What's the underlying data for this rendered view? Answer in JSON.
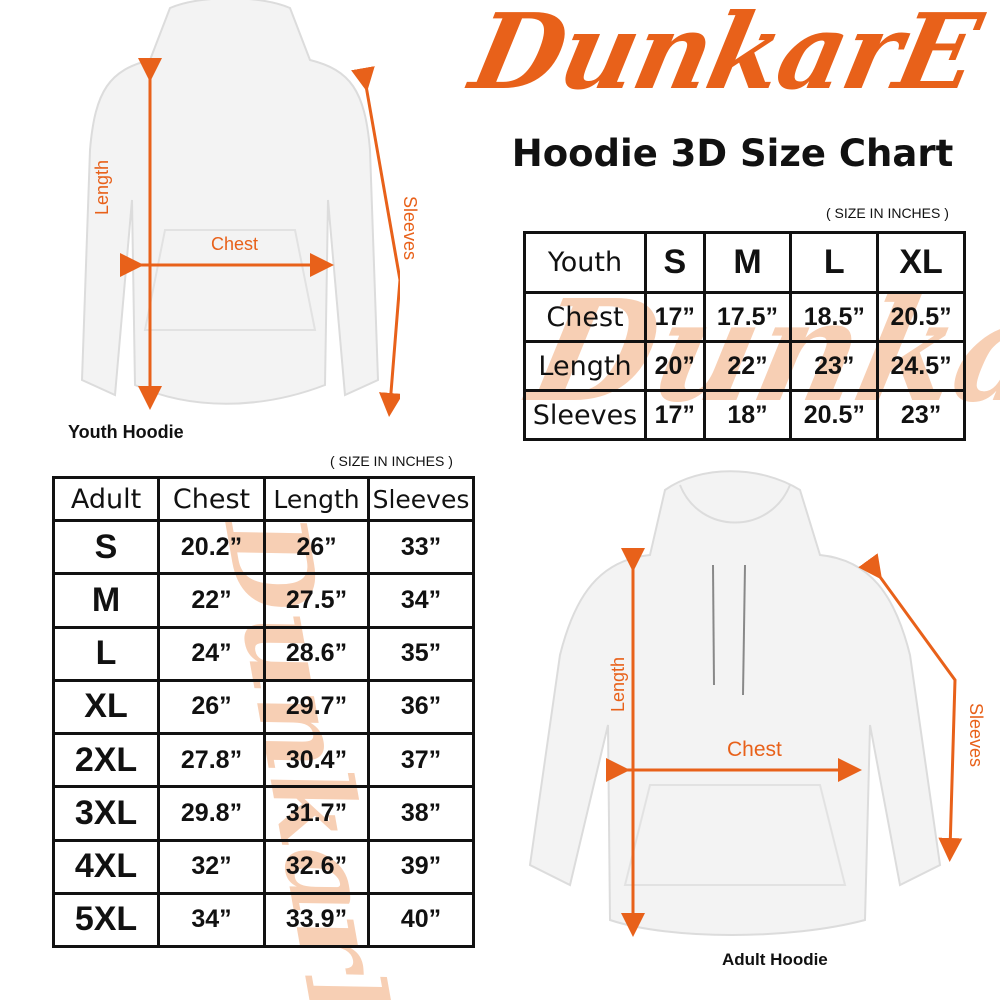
{
  "brand": {
    "logo_text": "DunkarE",
    "color": "#e8611a",
    "watermark_color": "#f7cfb4"
  },
  "title": "Hoodie 3D Size Chart",
  "youth": {
    "note": "( SIZE IN INCHES )",
    "caption": "Youth Hoodie",
    "diagram_labels": {
      "length": "Length",
      "chest": "Chest",
      "sleeves": "Sleeves"
    },
    "table": {
      "header": [
        "Youth",
        "S",
        "M",
        "L",
        "XL"
      ],
      "rows": [
        {
          "label": "Chest",
          "values": [
            "17”",
            "17.5”",
            "18.5”",
            "20.5”"
          ]
        },
        {
          "label": "Length",
          "values": [
            "20”",
            "22”",
            "23”",
            "24.5”"
          ]
        },
        {
          "label": "Sleeves",
          "values": [
            "17”",
            "18”",
            "20.5”",
            "23”"
          ]
        }
      ]
    }
  },
  "adult": {
    "note": "( SIZE IN INCHES )",
    "caption": "Adult Hoodie",
    "diagram_labels": {
      "length": "Length",
      "chest": "Chest",
      "sleeves": "Sleeves"
    },
    "table": {
      "header": [
        "Adult",
        "Chest",
        "Length",
        "Sleeves"
      ],
      "rows": [
        {
          "size": "S",
          "values": [
            "20.2”",
            "26”",
            "33”"
          ]
        },
        {
          "size": "M",
          "values": [
            "22”",
            "27.5”",
            "34”"
          ]
        },
        {
          "size": "L",
          "values": [
            "24”",
            "28.6”",
            "35”"
          ]
        },
        {
          "size": "XL",
          "values": [
            "26”",
            "29.7”",
            "36”"
          ]
        },
        {
          "size": "2XL",
          "values": [
            "27.8”",
            "30.4”",
            "37”"
          ]
        },
        {
          "size": "3XL",
          "values": [
            "29.8”",
            "31.7”",
            "38”"
          ]
        },
        {
          "size": "4XL",
          "values": [
            "32”",
            "32.6”",
            "39”"
          ]
        },
        {
          "size": "5XL",
          "values": [
            "34”",
            "33.9”",
            "40”"
          ]
        }
      ]
    }
  }
}
